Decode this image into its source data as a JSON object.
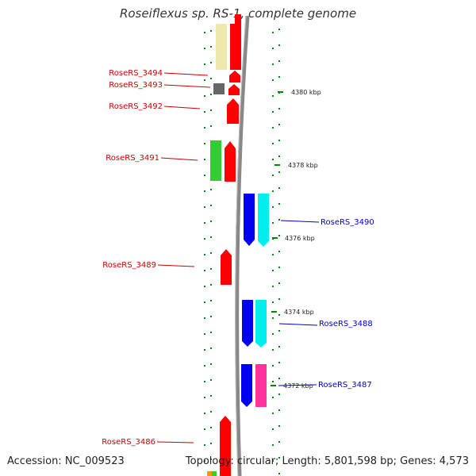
{
  "header": {
    "title": "Roseiflexus sp. RS-1, complete genome"
  },
  "footer": {
    "accession": "Accession: NC_009523",
    "topology": "Topology: circular; Length: 5,801,598 bp; Genes: 4,573"
  },
  "scale": {
    "labels": [
      "4380 kbp",
      "4378 kbp",
      "4376 kbp",
      "4374 kbp",
      "4372 kbp"
    ]
  },
  "genes": {
    "reverse": [
      "RoseRS_3494",
      "RoseRS_3493",
      "RoseRS_3492",
      "RoseRS_3491",
      "RoseRS_3489",
      "RoseRS_3486"
    ],
    "forward": [
      "RoseRS_3490",
      "RoseRS_3488",
      "RoseRS_3487"
    ]
  },
  "colors": {
    "reverse_label": "#cc0000",
    "forward_label": "#0000cc",
    "backbone": "#888888",
    "tick": "#008800",
    "cds": "#ff0000",
    "cds_blue": "#0000ee",
    "cyan": "#00eeee",
    "green": "#33cc33",
    "khaki": "#eee8aa",
    "gray": "#666666",
    "magenta": "#ff3399"
  }
}
